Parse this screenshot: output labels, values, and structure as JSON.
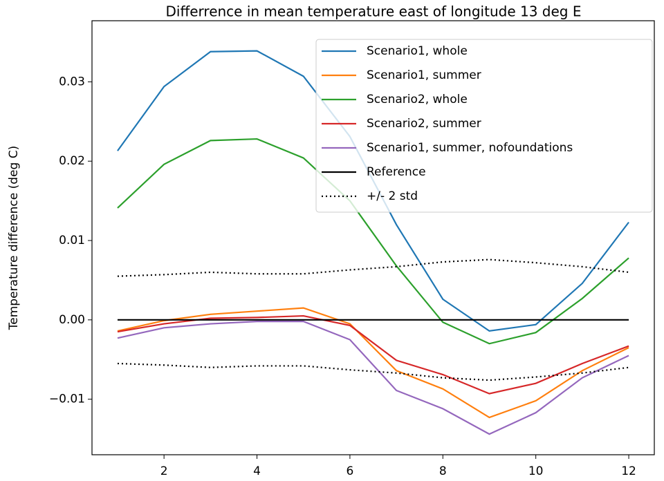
{
  "chart_data": {
    "type": "line",
    "title": "Differrence in mean temperature east of longitude 13 deg E",
    "y_label": "Temperature difference (deg C)",
    "x": [
      1,
      2,
      3,
      4,
      5,
      6,
      7,
      8,
      9,
      10,
      11,
      12
    ],
    "xlim": [
      0.45,
      12.55
    ],
    "xticks": [
      2,
      4,
      6,
      8,
      10,
      12
    ],
    "ylim": [
      -0.017,
      0.0377
    ],
    "yticks": [
      {
        "value": -0.01,
        "label": "−0.01"
      },
      {
        "value": 0,
        "label": "0.00"
      },
      {
        "value": 0.01,
        "label": "0.01"
      },
      {
        "value": 0.02,
        "label": "0.02"
      },
      {
        "value": 0.03,
        "label": "0.03"
      }
    ],
    "grid": false,
    "legend": "upper right",
    "series": [
      {
        "name": "Scenario1, whole",
        "color": "#1f77b4",
        "values": [
          0.0213,
          0.0294,
          0.0338,
          0.0339,
          0.0307,
          0.0231,
          0.012,
          0.0026,
          -0.0014,
          -0.0006,
          0.0046,
          0.0123
        ]
      },
      {
        "name": "Scenario1, summer",
        "color": "#ff7f0e",
        "values": [
          -0.0014,
          -0.0001,
          0.0007,
          0.0011,
          0.0015,
          -0.0005,
          -0.0064,
          -0.0087,
          -0.0123,
          -0.0102,
          -0.0064,
          -0.0035
        ]
      },
      {
        "name": "Scenario2, whole",
        "color": "#2ca02c",
        "values": [
          0.0141,
          0.0196,
          0.0226,
          0.0228,
          0.0204,
          0.015,
          0.0068,
          -0.0003,
          -0.003,
          -0.0016,
          0.0027,
          0.0078
        ]
      },
      {
        "name": "Scenario2, summer",
        "color": "#d62728",
        "values": [
          -0.0015,
          -0.0005,
          0.0002,
          0.0003,
          0.0005,
          -0.0007,
          -0.0051,
          -0.0069,
          -0.0093,
          -0.008,
          -0.0055,
          -0.0033
        ]
      },
      {
        "name": "Scenario1, summer, nofoundations",
        "color": "#9467bd",
        "values": [
          -0.0023,
          -0.001,
          -0.0005,
          -0.0002,
          -0.0002,
          -0.0025,
          -0.0089,
          -0.0112,
          -0.0144,
          -0.0117,
          -0.0073,
          -0.0045
        ]
      },
      {
        "name": "Reference",
        "color": "#000000",
        "values": [
          0,
          0,
          0,
          0,
          0,
          0,
          0,
          0,
          0,
          0,
          0,
          0
        ]
      },
      {
        "name": "+/- 2 std",
        "color": "#000000",
        "dash": "dotted",
        "values": [
          0.0055,
          0.0057,
          0.006,
          0.0058,
          0.0058,
          0.0063,
          0.0067,
          0.0073,
          0.0076,
          0.0072,
          0.0067,
          0.006
        ],
        "lower": [
          -0.0055,
          -0.0057,
          -0.006,
          -0.0058,
          -0.0058,
          -0.0063,
          -0.0067,
          -0.0073,
          -0.0076,
          -0.0072,
          -0.0067,
          -0.006
        ]
      }
    ]
  }
}
